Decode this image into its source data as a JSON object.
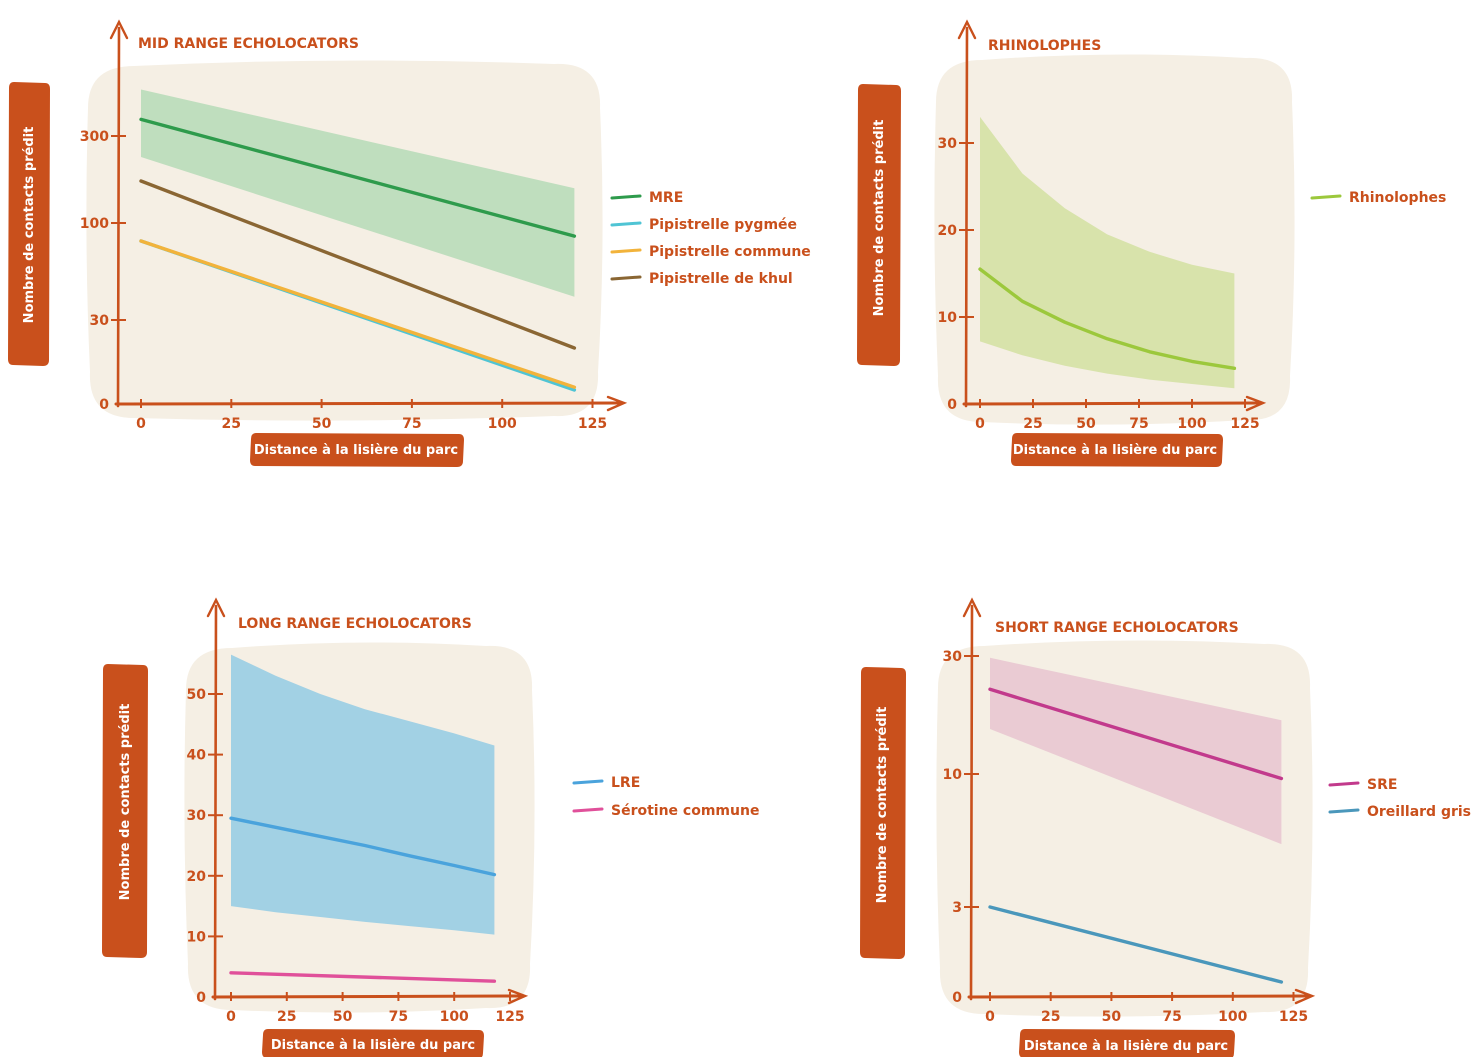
{
  "colors": {
    "accent": "#c9501c",
    "panel_bg": "#f5efe4"
  },
  "chart_data": [
    {
      "id": "mid",
      "type": "line",
      "title": "MID RANGE ECHOLOCATORS",
      "xlabel": "Distance à la lisière du parc",
      "ylabel": "Nombre de contacts prédit",
      "xlim": [
        0,
        130
      ],
      "xticks": [
        "0",
        "25",
        "50",
        "75",
        "100",
        "125"
      ],
      "yticks": [
        "0",
        "30",
        "100",
        "300"
      ],
      "legend_position": "right",
      "series": [
        {
          "name": "MRE",
          "color": "#2e9b4c",
          "x": [
            0,
            120
          ],
          "y": [
            370,
            85
          ],
          "band": {
            "color": "#bcdcbc",
            "lower": [
              230,
              40
            ],
            "upper": [
              540,
              155
            ]
          }
        },
        {
          "name": "Pipistrelle pygmée",
          "color": "#4fc4d4",
          "x": [
            0,
            120
          ],
          "y": [
            80,
            5
          ]
        },
        {
          "name": "Pipistrelle commune",
          "color": "#f2b33b",
          "x": [
            0,
            120
          ],
          "y": [
            80,
            6
          ]
        },
        {
          "name": "Pipistrelle de khul",
          "color": "#8a6633",
          "x": [
            0,
            120
          ],
          "y": [
            170,
            20
          ]
        }
      ]
    },
    {
      "id": "rhino",
      "type": "line",
      "title": "RHINOLOPHES",
      "xlabel": "Distance à la lisière du parc",
      "ylabel": "Nombre de contacts prédit",
      "xlim": [
        0,
        130
      ],
      "xticks": [
        "0",
        "25",
        "50",
        "75",
        "100",
        "125"
      ],
      "yticks": [
        "0",
        "10",
        "20",
        "30"
      ],
      "legend_position": "right",
      "series": [
        {
          "name": "Rhinolophes",
          "color": "#9cc83c",
          "x": [
            0,
            20,
            40,
            60,
            80,
            100,
            120
          ],
          "y": [
            15.5,
            11.8,
            9.4,
            7.5,
            6,
            4.9,
            4.1
          ],
          "band": {
            "color": "#d6e2a8",
            "lower": [
              7.2,
              5.6,
              4.4,
              3.5,
              2.8,
              2.3,
              1.8
            ],
            "upper": [
              33,
              26.5,
              22.5,
              19.5,
              17.5,
              16,
              15
            ]
          }
        }
      ]
    },
    {
      "id": "long",
      "type": "line",
      "title": "LONG RANGE ECHOLOCATORS",
      "xlabel": "Distance à la lisière du parc",
      "ylabel": "Nombre de contacts prédit",
      "xlim": [
        0,
        130
      ],
      "xticks": [
        "0",
        "25",
        "50",
        "75",
        "100",
        "125"
      ],
      "yticks": [
        "0",
        "10",
        "20",
        "30",
        "40",
        "50"
      ],
      "legend_position": "right",
      "series": [
        {
          "name": "LRE",
          "color": "#4aa3dc",
          "x": [
            0,
            20,
            40,
            60,
            80,
            100,
            118
          ],
          "y": [
            29.5,
            28,
            26.5,
            25,
            23.3,
            21.7,
            20.2
          ],
          "band": {
            "color": "#9dcfe4",
            "lower": [
              15,
              14,
              13.2,
              12.4,
              11.7,
              11,
              10.3
            ],
            "upper": [
              56.5,
              53,
              50,
              47.5,
              45.5,
              43.5,
              41.5
            ]
          }
        },
        {
          "name": "Sérotine commune",
          "color": "#e0509a",
          "x": [
            0,
            118
          ],
          "y": [
            4,
            2.6
          ]
        }
      ]
    },
    {
      "id": "short",
      "type": "line",
      "title": "SHORT RANGE ECHOLOCATORS",
      "xlabel": "Distance à la lisière du parc",
      "ylabel": "Nombre de contacts prédit",
      "xlim": [
        0,
        130
      ],
      "xticks": [
        "0",
        "25",
        "50",
        "75",
        "100",
        "125"
      ],
      "yticks": [
        "0",
        "3",
        "10",
        "30"
      ],
      "legend_position": "right",
      "series": [
        {
          "name": "SRE",
          "color": "#c23a8c",
          "x": [
            0,
            120
          ],
          "y": [
            22,
            9.6
          ],
          "band": {
            "color": "#e9c8d2",
            "lower": [
              15.2,
              5.3
            ],
            "upper": [
              29.5,
              16.5
            ]
          }
        },
        {
          "name": "Oreillard gris",
          "color": "#4a97bb",
          "x": [
            0,
            120
          ],
          "y": [
            3,
            0.5
          ]
        }
      ]
    }
  ]
}
